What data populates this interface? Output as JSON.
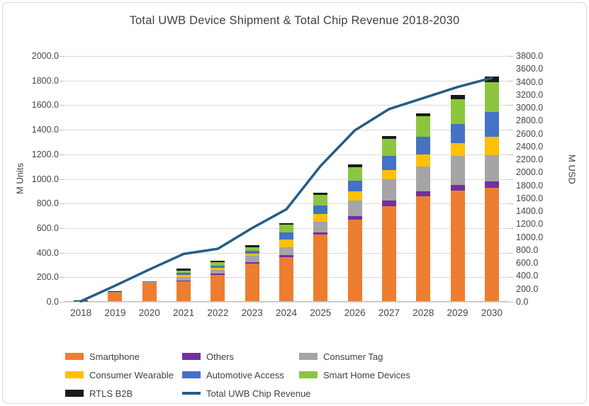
{
  "chart_data": {
    "type": "bar",
    "stacked": true,
    "title": "Total UWB Device Shipment & Total Chip Revenue 2018-2030",
    "grid": true,
    "categories": [
      "2018",
      "2019",
      "2020",
      "2021",
      "2022",
      "2023",
      "2024",
      "2025",
      "2026",
      "2027",
      "2028",
      "2029",
      "2030"
    ],
    "series": [
      {
        "name": "Smartphone",
        "color": "#ED7D31",
        "values": [
          2,
          70,
          150,
          160,
          213,
          306,
          360,
          540,
          665,
          771,
          853,
          900,
          920
        ]
      },
      {
        "name": "Others",
        "color": "#7030A0",
        "values": [
          0,
          1,
          2,
          8,
          10,
          13,
          15,
          20,
          29,
          48,
          42,
          45,
          55
        ]
      },
      {
        "name": "Consumer Tag",
        "color": "#A5A5A5",
        "values": [
          0,
          2,
          3,
          30,
          33,
          48,
          65,
          85,
          125,
          173,
          202,
          235,
          215
        ]
      },
      {
        "name": "Consumer Wearable",
        "color": "#FFC000",
        "values": [
          0,
          1,
          2,
          15,
          15,
          19,
          62,
          65,
          77,
          77,
          96,
          105,
          150
        ]
      },
      {
        "name": "Automotive Access",
        "color": "#4472C4",
        "values": [
          0,
          1,
          2,
          19,
          19,
          23,
          58,
          70,
          86,
          115,
          144,
          155,
          200
        ]
      },
      {
        "name": "Smart Home Devices",
        "color": "#8CC63F",
        "values": [
          0,
          1,
          1,
          19,
          25,
          29,
          60,
          85,
          110,
          138,
          169,
          205,
          240
        ]
      },
      {
        "name": "RTLS B2B",
        "color": "#1A1A1A",
        "values": [
          1,
          4,
          3,
          12,
          13,
          15,
          15,
          15,
          20,
          20,
          23,
          30,
          45
        ]
      }
    ],
    "line_series": {
      "name": "Total UWB Chip Revenue",
      "color": "#245D87",
      "axis": "right",
      "values": [
        10,
        250,
        500,
        740,
        820,
        1140,
        1430,
        2100,
        2650,
        2980,
        3150,
        3320,
        3460
      ]
    },
    "left_axis": {
      "label": "M Units",
      "min": 0,
      "max": 2000,
      "step": 200,
      "decimals": 1
    },
    "right_axis": {
      "label": "M USD",
      "min": 0,
      "max": 3800,
      "step": 200,
      "decimals": 1
    },
    "legend": {
      "position": "bottom",
      "entries": [
        {
          "label": "Smartphone",
          "type": "box",
          "color": "#ED7D31"
        },
        {
          "label": "Others",
          "type": "box",
          "color": "#7030A0"
        },
        {
          "label": "Consumer Tag",
          "type": "box",
          "color": "#A5A5A5"
        },
        {
          "label": "Consumer Wearable",
          "type": "box",
          "color": "#FFC000"
        },
        {
          "label": "Automotive Access",
          "type": "box",
          "color": "#4472C4"
        },
        {
          "label": "Smart Home Devices",
          "type": "box",
          "color": "#8CC63F"
        },
        {
          "label": "RTLS B2B",
          "type": "box",
          "color": "#1A1A1A"
        },
        {
          "label": "Total UWB Chip Revenue",
          "type": "line",
          "color": "#245D87"
        }
      ]
    }
  }
}
